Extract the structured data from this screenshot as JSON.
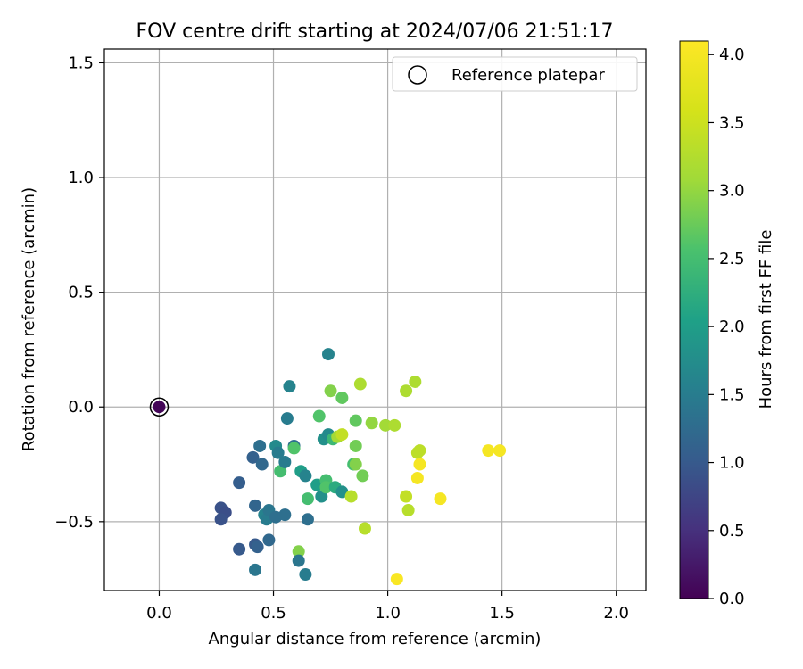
{
  "chart_data": {
    "type": "scatter",
    "title": "FOV centre drift starting at 2024/07/06 21:51:17",
    "xlabel": "Angular distance from reference (arcmin)",
    "ylabel": "Rotation from reference (arcmin)",
    "xlim": [
      -0.24,
      2.13
    ],
    "ylim": [
      -0.8,
      1.56
    ],
    "xticks": [
      0.0,
      0.5,
      1.0,
      1.5,
      2.0
    ],
    "xtick_labels": [
      "0.0",
      "0.5",
      "1.0",
      "1.5",
      "2.0"
    ],
    "yticks": [
      -0.5,
      0.0,
      0.5,
      1.0,
      1.5
    ],
    "ytick_labels": [
      "−0.5",
      "0.0",
      "0.5",
      "1.0",
      "1.5"
    ],
    "grid": true,
    "legend": {
      "placement": "top-right",
      "entries": [
        "Reference platepar"
      ]
    },
    "reference_point": {
      "x": 0.0,
      "y": 0.0,
      "label": "Reference platepar"
    },
    "colorbar": {
      "label": "Hours from first FF file",
      "colormap": "viridis",
      "range": [
        0.0,
        4.1
      ],
      "ticks": [
        0.0,
        0.5,
        1.0,
        1.5,
        2.0,
        2.5,
        3.0,
        3.5,
        4.0
      ],
      "tick_labels": [
        "0.0",
        "0.5",
        "1.0",
        "1.5",
        "2.0",
        "2.5",
        "3.0",
        "3.5",
        "4.0"
      ]
    },
    "series": [
      {
        "points": [
          {
            "x": 0.0,
            "y": 0.0,
            "c": 0.05
          },
          {
            "x": 0.27,
            "y": -0.44,
            "c": 0.9
          },
          {
            "x": 0.29,
            "y": -0.46,
            "c": 0.85
          },
          {
            "x": 0.27,
            "y": -0.49,
            "c": 0.9
          },
          {
            "x": 0.35,
            "y": -0.33,
            "c": 1.05
          },
          {
            "x": 0.35,
            "y": -0.62,
            "c": 1.0
          },
          {
            "x": 0.41,
            "y": -0.22,
            "c": 1.1
          },
          {
            "x": 0.42,
            "y": -0.43,
            "c": 1.15
          },
          {
            "x": 0.42,
            "y": -0.6,
            "c": 1.0
          },
          {
            "x": 0.43,
            "y": -0.61,
            "c": 1.1
          },
          {
            "x": 0.42,
            "y": -0.71,
            "c": 1.4
          },
          {
            "x": 0.44,
            "y": -0.17,
            "c": 1.3
          },
          {
            "x": 0.45,
            "y": -0.25,
            "c": 1.2
          },
          {
            "x": 0.46,
            "y": -0.47,
            "c": 1.6
          },
          {
            "x": 0.47,
            "y": -0.49,
            "c": 1.5
          },
          {
            "x": 0.48,
            "y": -0.45,
            "c": 1.4
          },
          {
            "x": 0.48,
            "y": -0.58,
            "c": 1.2
          },
          {
            "x": 0.51,
            "y": -0.48,
            "c": 1.3
          },
          {
            "x": 0.51,
            "y": -0.17,
            "c": 1.7
          },
          {
            "x": 0.52,
            "y": -0.2,
            "c": 1.5
          },
          {
            "x": 0.53,
            "y": -0.28,
            "c": 2.5
          },
          {
            "x": 0.55,
            "y": -0.24,
            "c": 1.5
          },
          {
            "x": 0.55,
            "y": -0.47,
            "c": 1.3
          },
          {
            "x": 0.56,
            "y": -0.05,
            "c": 1.5
          },
          {
            "x": 0.57,
            "y": 0.09,
            "c": 1.6
          },
          {
            "x": 0.59,
            "y": -0.17,
            "c": 1.3
          },
          {
            "x": 0.59,
            "y": -0.18,
            "c": 2.6
          },
          {
            "x": 0.61,
            "y": -0.63,
            "c": 2.9
          },
          {
            "x": 0.61,
            "y": -0.67,
            "c": 1.4
          },
          {
            "x": 0.62,
            "y": -0.28,
            "c": 2.0
          },
          {
            "x": 0.64,
            "y": -0.73,
            "c": 1.5
          },
          {
            "x": 0.64,
            "y": -0.3,
            "c": 1.6
          },
          {
            "x": 0.65,
            "y": -0.49,
            "c": 1.3
          },
          {
            "x": 0.65,
            "y": -0.4,
            "c": 2.5
          },
          {
            "x": 0.69,
            "y": -0.34,
            "c": 2.0
          },
          {
            "x": 0.7,
            "y": -0.04,
            "c": 2.6
          },
          {
            "x": 0.71,
            "y": -0.39,
            "c": 1.8
          },
          {
            "x": 0.72,
            "y": -0.14,
            "c": 1.8
          },
          {
            "x": 0.73,
            "y": -0.32,
            "c": 2.5
          },
          {
            "x": 0.73,
            "y": -0.35,
            "c": 2.6
          },
          {
            "x": 0.74,
            "y": -0.12,
            "c": 1.7
          },
          {
            "x": 0.74,
            "y": 0.23,
            "c": 1.6
          },
          {
            "x": 0.75,
            "y": 0.07,
            "c": 2.9
          },
          {
            "x": 0.76,
            "y": -0.14,
            "c": 2.4
          },
          {
            "x": 0.77,
            "y": -0.35,
            "c": 2.2
          },
          {
            "x": 0.78,
            "y": -0.13,
            "c": 3.1
          },
          {
            "x": 0.8,
            "y": -0.12,
            "c": 3.4
          },
          {
            "x": 0.8,
            "y": 0.04,
            "c": 2.7
          },
          {
            "x": 0.8,
            "y": -0.37,
            "c": 1.8
          },
          {
            "x": 0.84,
            "y": -0.39,
            "c": 3.3
          },
          {
            "x": 0.85,
            "y": -0.25,
            "c": 2.5
          },
          {
            "x": 0.86,
            "y": -0.06,
            "c": 2.7
          },
          {
            "x": 0.86,
            "y": -0.17,
            "c": 2.8
          },
          {
            "x": 0.86,
            "y": -0.25,
            "c": 2.9
          },
          {
            "x": 0.88,
            "y": 0.1,
            "c": 3.2
          },
          {
            "x": 0.89,
            "y": -0.3,
            "c": 2.8
          },
          {
            "x": 0.9,
            "y": -0.53,
            "c": 3.3
          },
          {
            "x": 0.93,
            "y": -0.07,
            "c": 3.0
          },
          {
            "x": 0.99,
            "y": -0.08,
            "c": 3.1
          },
          {
            "x": 1.03,
            "y": -0.08,
            "c": 3.2
          },
          {
            "x": 1.04,
            "y": -0.75,
            "c": 4.05
          },
          {
            "x": 1.08,
            "y": 0.07,
            "c": 3.2
          },
          {
            "x": 1.08,
            "y": -0.39,
            "c": 3.4
          },
          {
            "x": 1.09,
            "y": -0.45,
            "c": 3.3
          },
          {
            "x": 1.12,
            "y": 0.11,
            "c": 3.2
          },
          {
            "x": 1.13,
            "y": -0.2,
            "c": 3.35
          },
          {
            "x": 1.13,
            "y": -0.31,
            "c": 4.0
          },
          {
            "x": 1.14,
            "y": -0.19,
            "c": 3.35
          },
          {
            "x": 1.14,
            "y": -0.25,
            "c": 4.0
          },
          {
            "x": 1.23,
            "y": -0.4,
            "c": 4.0
          },
          {
            "x": 1.44,
            "y": -0.19,
            "c": 4.0
          },
          {
            "x": 1.49,
            "y": -0.19,
            "c": 4.0
          }
        ]
      }
    ]
  }
}
